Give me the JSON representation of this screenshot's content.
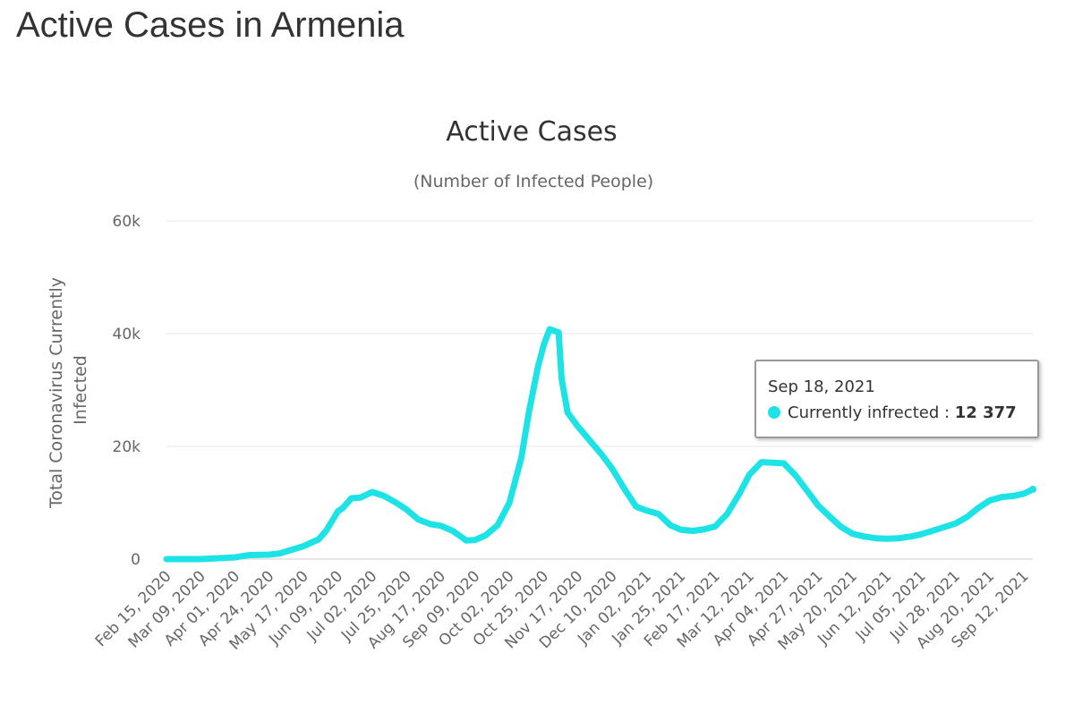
{
  "page": {
    "heading": "Active Cases in Armenia"
  },
  "tooltip": {
    "date": "Sep 18, 2021",
    "series_label": "Currently infrected",
    "separator": " : ",
    "value": "12 377"
  },
  "colors": {
    "series": "#1ee3e6",
    "grid": "#e6e6e6",
    "text": "#333333",
    "muted_text": "#666666"
  },
  "chart_data": {
    "type": "line",
    "title": "Active Cases",
    "subtitle": "(Number of Infected People)",
    "ylabel": "Total Coronavirus Currently Infected",
    "xlabel": "",
    "ylim": [
      0,
      60000
    ],
    "y_ticks": [
      "0",
      "20k",
      "40k",
      "60k"
    ],
    "y_tick_values": [
      0,
      20000,
      40000,
      60000
    ],
    "x_tick_labels": [
      "Feb 15, 2020",
      "Mar 09, 2020",
      "Apr 01, 2020",
      "Apr 24, 2020",
      "May 17, 2020",
      "Jun 09, 2020",
      "Jul 02, 2020",
      "Jul 25, 2020",
      "Aug 17, 2020",
      "Sep 09, 2020",
      "Oct 02, 2020",
      "Oct 25, 2020",
      "Nov 17, 2020",
      "Dec 10, 2020",
      "Jan 02, 2021",
      "Jan 25, 2021",
      "Feb 17, 2021",
      "Mar 12, 2021",
      "Apr 04, 2021",
      "Apr 27, 2021",
      "May 20, 2021",
      "Jun 12, 2021",
      "Jul 05, 2021",
      "Jul 28, 2021",
      "Aug 20, 2021",
      "Sep 12, 2021"
    ],
    "x_range": [
      "Feb 15, 2020",
      "Sep 18, 2021"
    ],
    "grid": true,
    "legend": "none",
    "series": [
      {
        "name": "Currently infrected",
        "points": [
          [
            "2020-02-15",
            0
          ],
          [
            "2020-03-09",
            0
          ],
          [
            "2020-04-01",
            300
          ],
          [
            "2020-04-10",
            700
          ],
          [
            "2020-04-24",
            800
          ],
          [
            "2020-05-01",
            1000
          ],
          [
            "2020-05-17",
            2300
          ],
          [
            "2020-05-27",
            3500
          ],
          [
            "2020-06-01",
            5000
          ],
          [
            "2020-06-09",
            8500
          ],
          [
            "2020-06-12",
            9000
          ],
          [
            "2020-06-18",
            10800
          ],
          [
            "2020-06-24",
            10900
          ],
          [
            "2020-07-02",
            11900
          ],
          [
            "2020-07-10",
            11200
          ],
          [
            "2020-07-18",
            10000
          ],
          [
            "2020-07-25",
            8800
          ],
          [
            "2020-08-02",
            7000
          ],
          [
            "2020-08-10",
            6200
          ],
          [
            "2020-08-17",
            5900
          ],
          [
            "2020-08-25",
            5000
          ],
          [
            "2020-09-03",
            3300
          ],
          [
            "2020-09-09",
            3400
          ],
          [
            "2020-09-16",
            4200
          ],
          [
            "2020-09-24",
            6000
          ],
          [
            "2020-10-02",
            10000
          ],
          [
            "2020-10-10",
            18000
          ],
          [
            "2020-10-15",
            26000
          ],
          [
            "2020-10-21",
            34000
          ],
          [
            "2020-10-25",
            38000
          ],
          [
            "2020-10-29",
            40800
          ],
          [
            "2020-11-04",
            40200
          ],
          [
            "2020-11-06",
            32000
          ],
          [
            "2020-11-10",
            26000
          ],
          [
            "2020-11-17",
            23500
          ],
          [
            "2020-11-25",
            21000
          ],
          [
            "2020-12-03",
            18500
          ],
          [
            "2020-12-10",
            16000
          ],
          [
            "2020-12-18",
            12500
          ],
          [
            "2020-12-26",
            9300
          ],
          [
            "2021-01-02",
            8600
          ],
          [
            "2021-01-10",
            8000
          ],
          [
            "2021-01-18",
            6000
          ],
          [
            "2021-01-25",
            5200
          ],
          [
            "2021-02-02",
            5000
          ],
          [
            "2021-02-10",
            5300
          ],
          [
            "2021-02-17",
            5800
          ],
          [
            "2021-02-25",
            8000
          ],
          [
            "2021-03-05",
            11500
          ],
          [
            "2021-03-12",
            15000
          ],
          [
            "2021-03-20",
            17200
          ],
          [
            "2021-03-27",
            17100
          ],
          [
            "2021-04-04",
            17000
          ],
          [
            "2021-04-12",
            14800
          ],
          [
            "2021-04-20",
            12000
          ],
          [
            "2021-04-27",
            9500
          ],
          [
            "2021-05-05",
            7500
          ],
          [
            "2021-05-12",
            5800
          ],
          [
            "2021-05-20",
            4500
          ],
          [
            "2021-05-28",
            4000
          ],
          [
            "2021-06-05",
            3700
          ],
          [
            "2021-06-12",
            3600
          ],
          [
            "2021-06-20",
            3700
          ],
          [
            "2021-06-28",
            4000
          ],
          [
            "2021-07-05",
            4400
          ],
          [
            "2021-07-15",
            5200
          ],
          [
            "2021-07-28",
            6300
          ],
          [
            "2021-08-05",
            7500
          ],
          [
            "2021-08-12",
            9000
          ],
          [
            "2021-08-20",
            10400
          ],
          [
            "2021-08-28",
            11000
          ],
          [
            "2021-09-05",
            11200
          ],
          [
            "2021-09-12",
            11600
          ],
          [
            "2021-09-18",
            12377
          ]
        ]
      }
    ]
  }
}
